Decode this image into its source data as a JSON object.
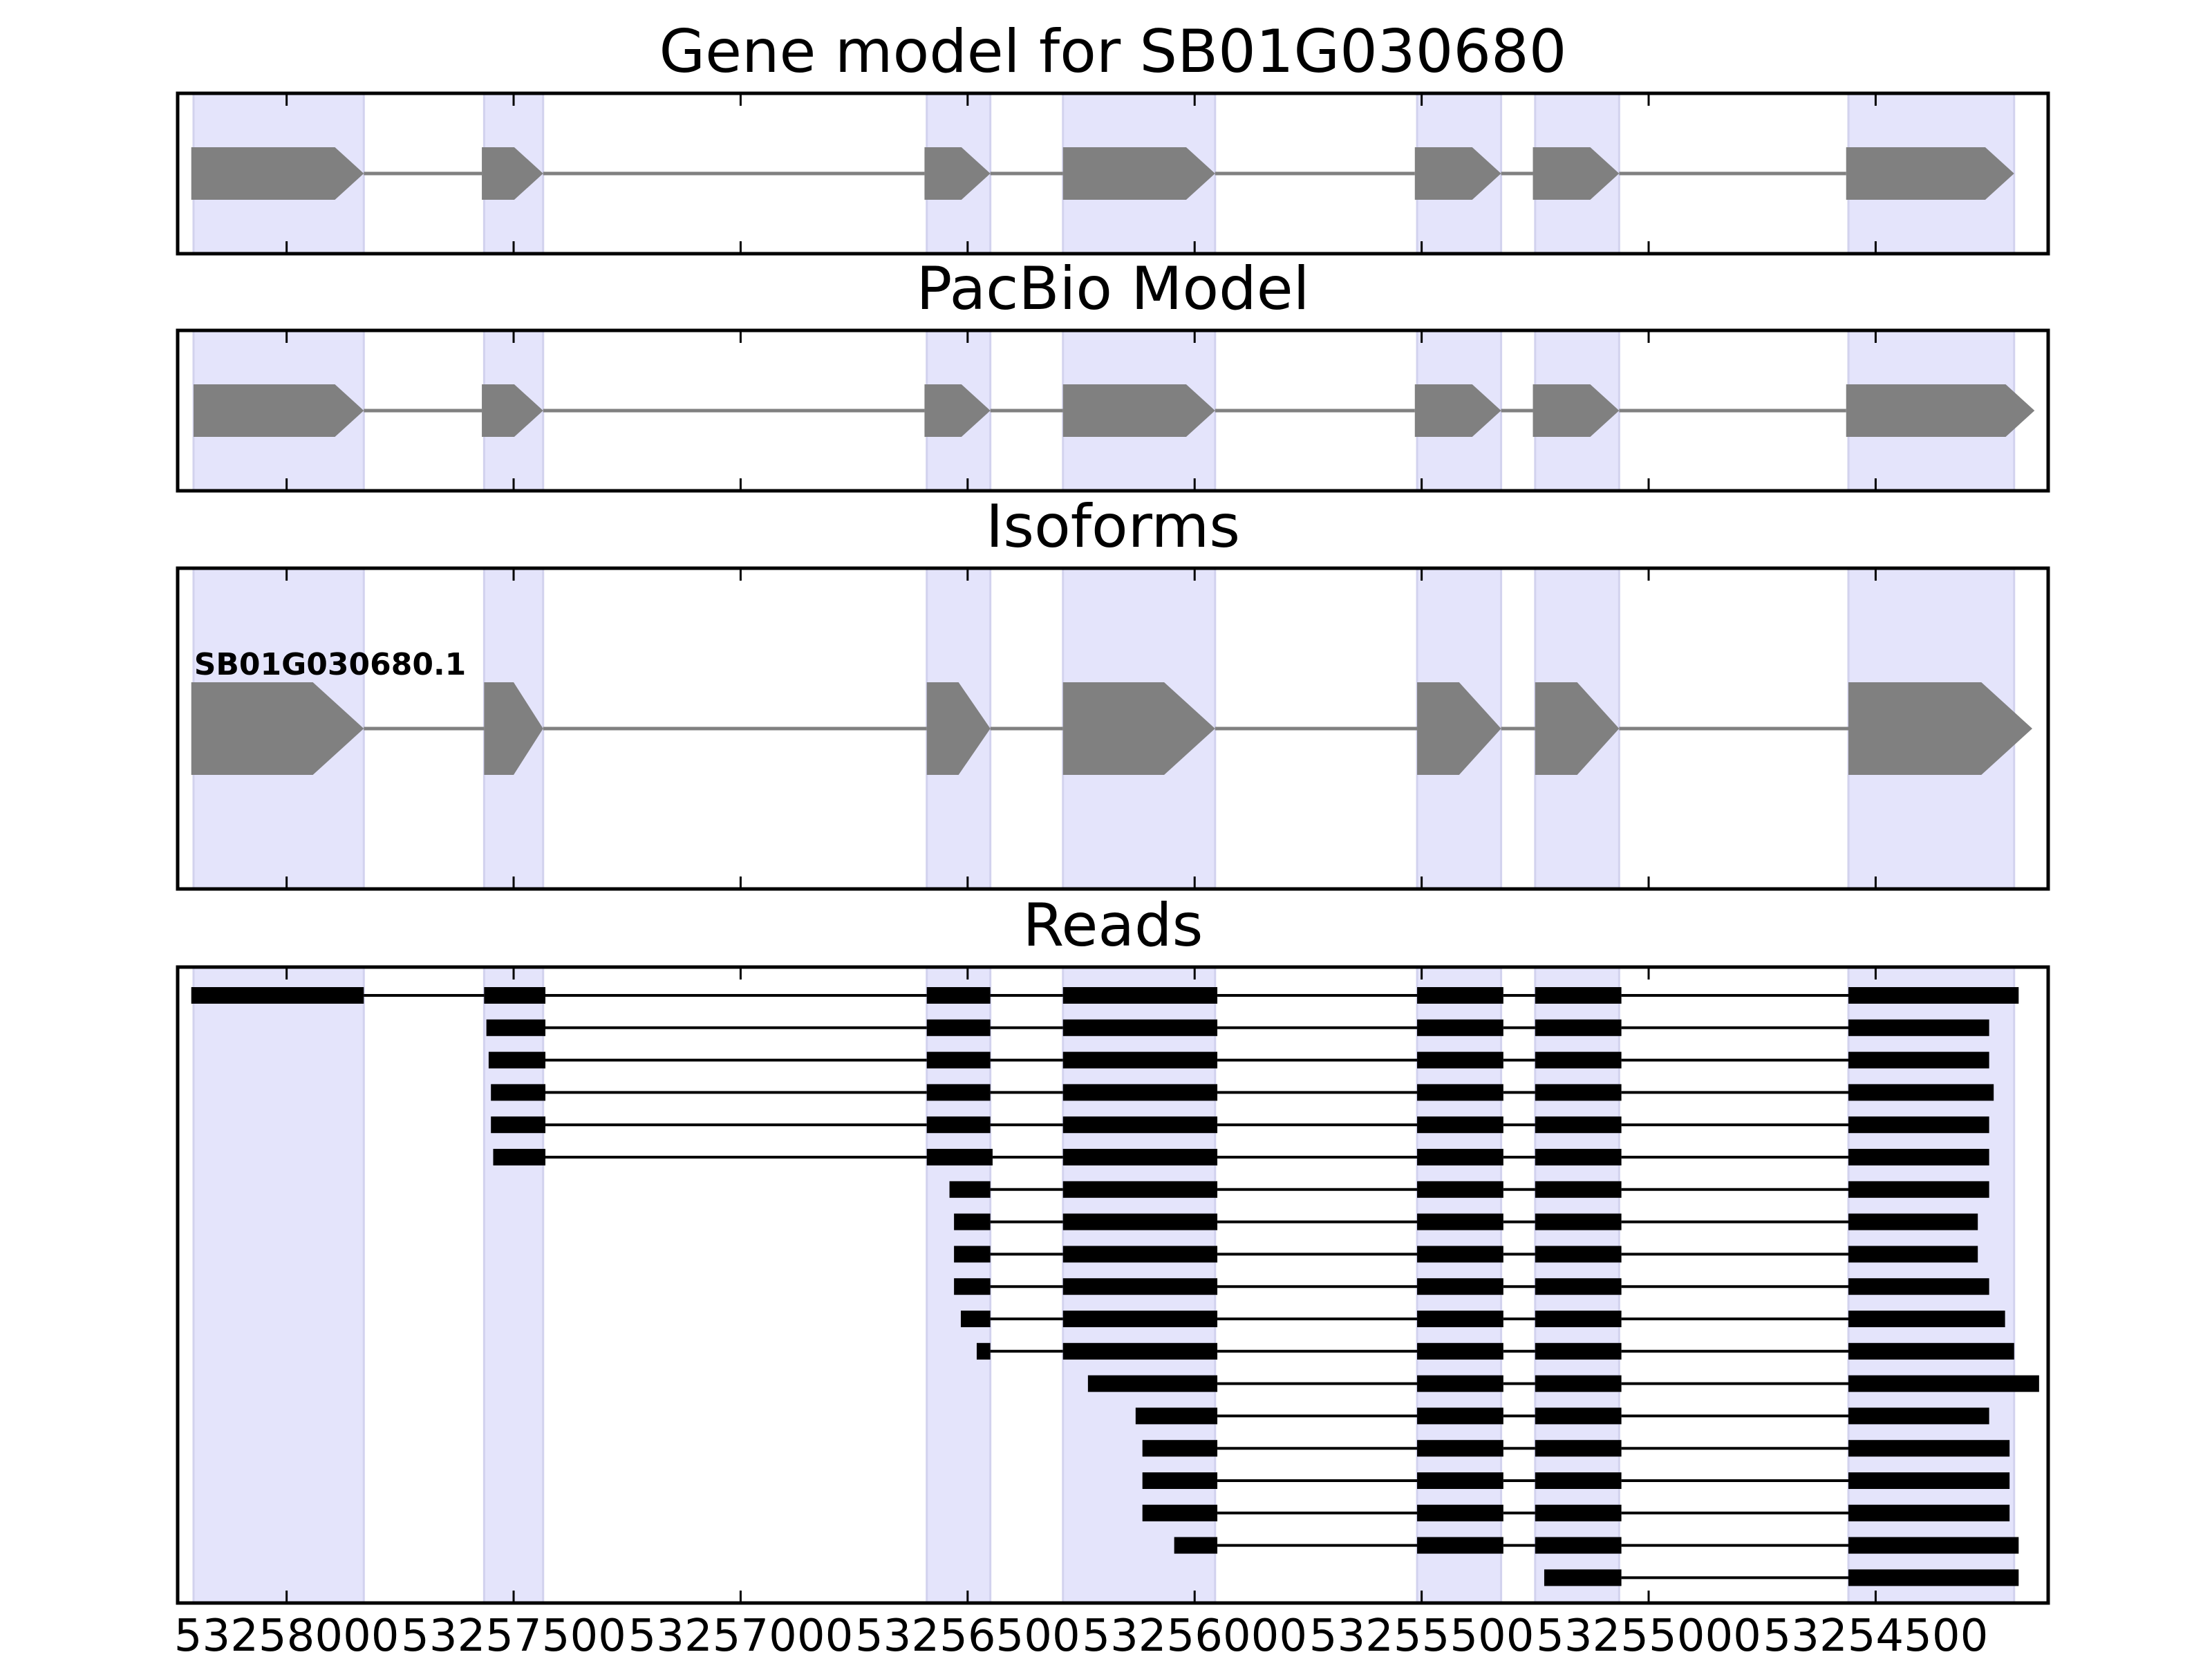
{
  "panels": [
    {
      "key": "gene_model",
      "title": "Gene model for SB01G030680"
    },
    {
      "key": "pacbio",
      "title": "PacBio Model"
    },
    {
      "key": "isoforms",
      "title": "Isoforms"
    },
    {
      "key": "reads",
      "title": "Reads"
    }
  ],
  "isoform_label": "SB01G030680.1",
  "axis": {
    "reversed": true,
    "xlim": [
      53258240,
      53254120
    ],
    "ticks": [
      53258000,
      53257500,
      53257000,
      53256500,
      53256000,
      53255500,
      53255000,
      53254500
    ],
    "tick_labels": [
      "53258000",
      "53257500",
      "53257000",
      "53256500",
      "53256000",
      "53255500",
      "53255000",
      "53254500"
    ]
  },
  "colors": {
    "exon_shading": "#e4e4fb",
    "feature_fill": "#808080",
    "intron_line": "#808080",
    "read": "#000000"
  },
  "exon_regions": [
    [
      53258205,
      53257830
    ],
    [
      53257565,
      53257435
    ],
    [
      53256590,
      53256450
    ],
    [
      53256290,
      53255955
    ],
    [
      53255510,
      53255325
    ],
    [
      53255250,
      53255065
    ],
    [
      53254560,
      53254195
    ]
  ],
  "gene_model": [
    [
      53258210,
      53257830
    ],
    [
      53257570,
      53257435
    ],
    [
      53256595,
      53256450
    ],
    [
      53256290,
      53255955
    ],
    [
      53255515,
      53255325
    ],
    [
      53255255,
      53255065
    ],
    [
      53254565,
      53254195
    ]
  ],
  "pacbio_model": [
    [
      53258205,
      53257830
    ],
    [
      53257570,
      53257435
    ],
    [
      53256595,
      53256450
    ],
    [
      53256290,
      53255955
    ],
    [
      53255515,
      53255325
    ],
    [
      53255255,
      53255065
    ],
    [
      53254565,
      53254150
    ]
  ],
  "isoform_model": [
    [
      53258210,
      53257830
    ],
    [
      53257565,
      53257435
    ],
    [
      53256590,
      53256450
    ],
    [
      53256290,
      53255955
    ],
    [
      53255510,
      53255325
    ],
    [
      53255250,
      53255065
    ],
    [
      53254560,
      53254155
    ]
  ],
  "reads": [
    [
      [
        53258210,
        53257830
      ],
      [
        53257565,
        53257430
      ],
      [
        53256590,
        53256450
      ],
      [
        53256290,
        53255950
      ],
      [
        53255510,
        53255320
      ],
      [
        53255250,
        53255060
      ],
      [
        53254560,
        53254185
      ]
    ],
    [
      [
        53257560,
        53257430
      ],
      [
        53256590,
        53256450
      ],
      [
        53256290,
        53255950
      ],
      [
        53255510,
        53255320
      ],
      [
        53255250,
        53255060
      ],
      [
        53254560,
        53254250
      ]
    ],
    [
      [
        53257555,
        53257430
      ],
      [
        53256590,
        53256450
      ],
      [
        53256290,
        53255950
      ],
      [
        53255510,
        53255320
      ],
      [
        53255250,
        53255060
      ],
      [
        53254560,
        53254250
      ]
    ],
    [
      [
        53257550,
        53257430
      ],
      [
        53256590,
        53256450
      ],
      [
        53256290,
        53255950
      ],
      [
        53255510,
        53255320
      ],
      [
        53255250,
        53255060
      ],
      [
        53254560,
        53254240
      ]
    ],
    [
      [
        53257550,
        53257430
      ],
      [
        53256590,
        53256450
      ],
      [
        53256290,
        53255950
      ],
      [
        53255510,
        53255320
      ],
      [
        53255250,
        53255060
      ],
      [
        53254560,
        53254250
      ]
    ],
    [
      [
        53257545,
        53257430
      ],
      [
        53256590,
        53256445
      ],
      [
        53256290,
        53255950
      ],
      [
        53255510,
        53255320
      ],
      [
        53255250,
        53255060
      ],
      [
        53254560,
        53254250
      ]
    ],
    [
      [
        53256540,
        53256450
      ],
      [
        53256290,
        53255950
      ],
      [
        53255510,
        53255320
      ],
      [
        53255250,
        53255060
      ],
      [
        53254560,
        53254250
      ]
    ],
    [
      [
        53256530,
        53256450
      ],
      [
        53256290,
        53255950
      ],
      [
        53255510,
        53255320
      ],
      [
        53255250,
        53255060
      ],
      [
        53254560,
        53254275
      ]
    ],
    [
      [
        53256530,
        53256450
      ],
      [
        53256290,
        53255950
      ],
      [
        53255510,
        53255320
      ],
      [
        53255250,
        53255060
      ],
      [
        53254560,
        53254275
      ]
    ],
    [
      [
        53256530,
        53256450
      ],
      [
        53256290,
        53255950
      ],
      [
        53255510,
        53255320
      ],
      [
        53255250,
        53255060
      ],
      [
        53254560,
        53254250
      ]
    ],
    [
      [
        53256515,
        53256450
      ],
      [
        53256290,
        53255950
      ],
      [
        53255510,
        53255320
      ],
      [
        53255250,
        53255060
      ],
      [
        53254560,
        53254215
      ]
    ],
    [
      [
        53256480,
        53256450
      ],
      [
        53256290,
        53255950
      ],
      [
        53255510,
        53255320
      ],
      [
        53255250,
        53255060
      ],
      [
        53254560,
        53254195
      ]
    ],
    [
      [
        53256235,
        53255950
      ],
      [
        53255510,
        53255320
      ],
      [
        53255250,
        53255060
      ],
      [
        53254560,
        53254140
      ]
    ],
    [
      [
        53256130,
        53255950
      ],
      [
        53255510,
        53255320
      ],
      [
        53255250,
        53255060
      ],
      [
        53254560,
        53254250
      ]
    ],
    [
      [
        53256115,
        53255950
      ],
      [
        53255510,
        53255320
      ],
      [
        53255250,
        53255060
      ],
      [
        53254560,
        53254205
      ]
    ],
    [
      [
        53256115,
        53255950
      ],
      [
        53255510,
        53255320
      ],
      [
        53255250,
        53255060
      ],
      [
        53254560,
        53254205
      ]
    ],
    [
      [
        53256115,
        53255950
      ],
      [
        53255510,
        53255320
      ],
      [
        53255250,
        53255060
      ],
      [
        53254560,
        53254205
      ]
    ],
    [
      [
        53256045,
        53255950
      ],
      [
        53255510,
        53255320
      ],
      [
        53255250,
        53255060
      ],
      [
        53254560,
        53254185
      ]
    ],
    [
      [
        53255230,
        53255060
      ],
      [
        53254560,
        53254185
      ]
    ]
  ]
}
